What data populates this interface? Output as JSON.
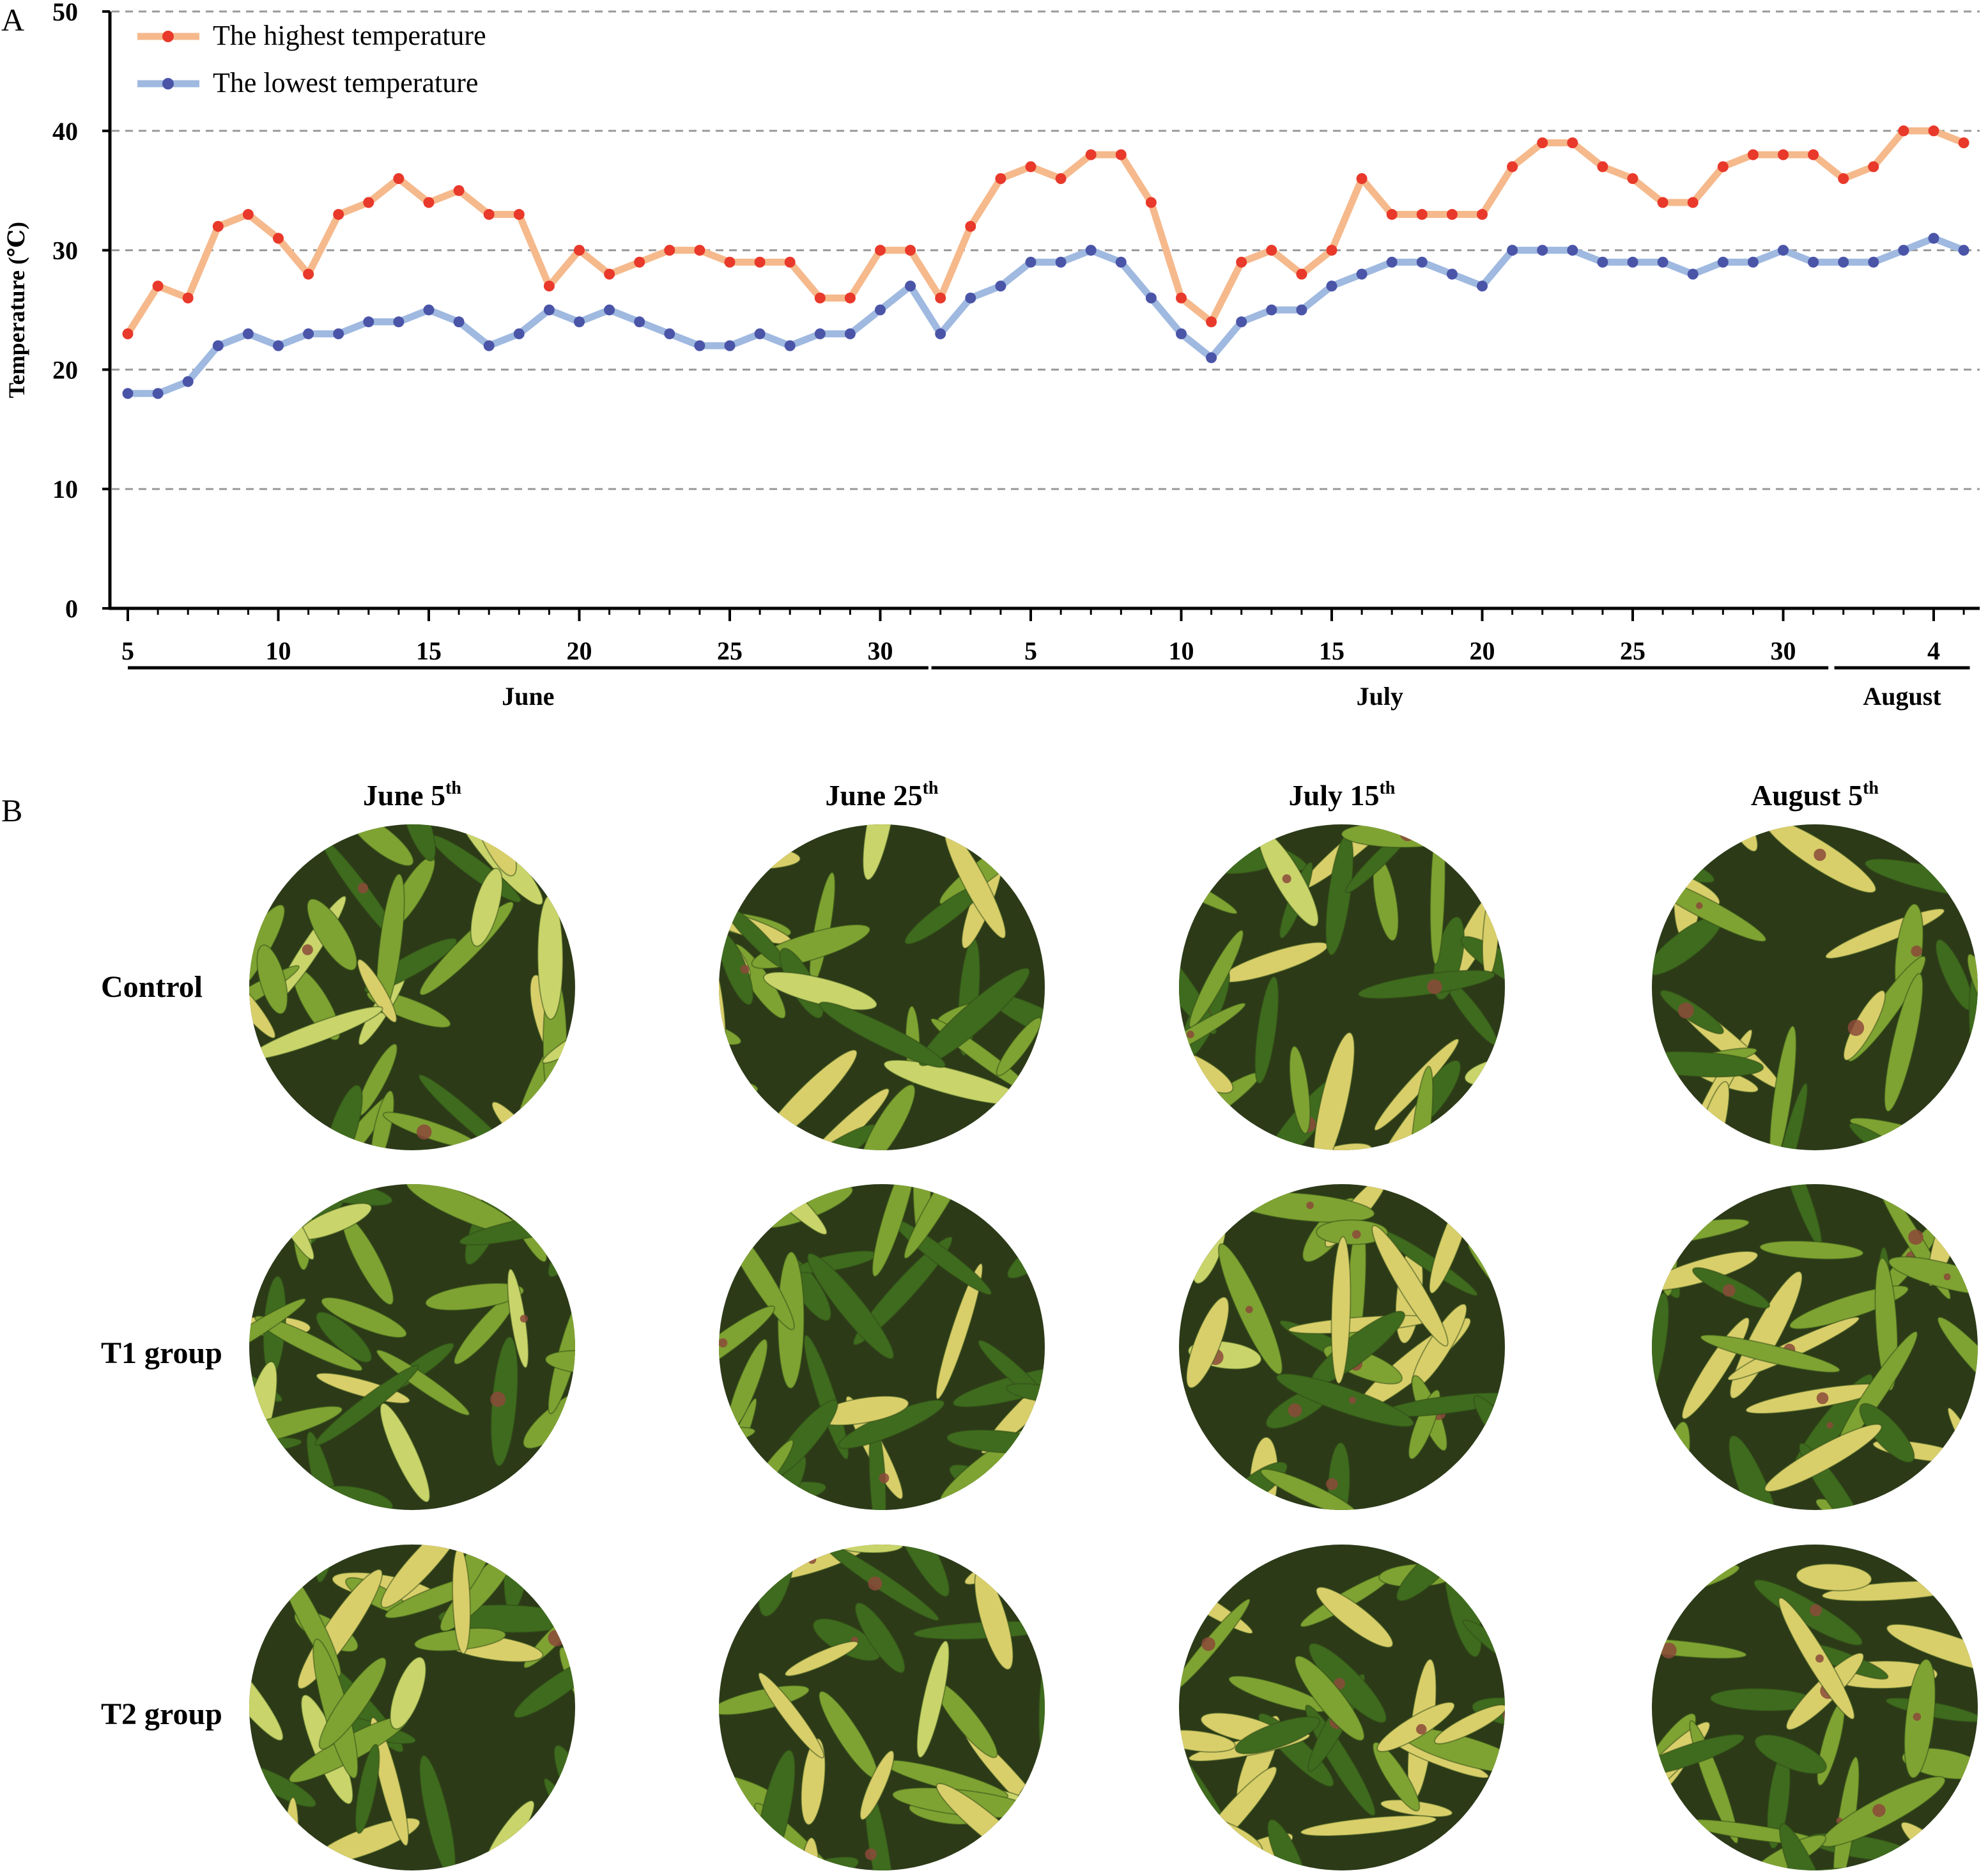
{
  "panels": {
    "a_letter": "A",
    "b_letter": "B"
  },
  "chart_data": {
    "type": "line",
    "title": "",
    "xlabel": "",
    "ylabel": "Temperature (℃)",
    "ylim": [
      0,
      50
    ],
    "yticks": [
      0,
      10,
      20,
      30,
      40,
      50
    ],
    "grid": "horizontal dashed",
    "legend_position": "top-left",
    "x_days": [
      5,
      6,
      7,
      8,
      9,
      10,
      11,
      12,
      13,
      14,
      15,
      16,
      17,
      18,
      19,
      20,
      21,
      22,
      23,
      24,
      25,
      26,
      27,
      28,
      29,
      30,
      1,
      2,
      3,
      4,
      5,
      6,
      7,
      8,
      9,
      10,
      11,
      12,
      13,
      14,
      15,
      16,
      17,
      18,
      19,
      20,
      21,
      22,
      23,
      24,
      25,
      26,
      27,
      28,
      29,
      30,
      31,
      1,
      2,
      3,
      4,
      5
    ],
    "x_tick_labels": [
      {
        "index": 0,
        "label": "5"
      },
      {
        "index": 5,
        "label": "10"
      },
      {
        "index": 10,
        "label": "15"
      },
      {
        "index": 15,
        "label": "20"
      },
      {
        "index": 20,
        "label": "25"
      },
      {
        "index": 25,
        "label": "30"
      },
      {
        "index": 30,
        "label": "5"
      },
      {
        "index": 35,
        "label": "10"
      },
      {
        "index": 40,
        "label": "15"
      },
      {
        "index": 45,
        "label": "20"
      },
      {
        "index": 50,
        "label": "25"
      },
      {
        "index": 55,
        "label": "30"
      },
      {
        "index": 60,
        "label": "4"
      }
    ],
    "months": [
      {
        "label": "June",
        "start_index": 0,
        "end_index": 26.6
      },
      {
        "label": "July",
        "start_index": 26.7,
        "end_index": 56.5
      },
      {
        "label": "August",
        "start_index": 56.7,
        "end_index": 61.2
      }
    ],
    "series": [
      {
        "name": "The highest temperature",
        "line_color": "#f5b98c",
        "marker_color": "#e8392b",
        "values": [
          23,
          27,
          26,
          32,
          33,
          31,
          28,
          33,
          34,
          36,
          34,
          35,
          33,
          33,
          27,
          30,
          28,
          29,
          30,
          30,
          29,
          29,
          29,
          26,
          26,
          30,
          30,
          26,
          32,
          36,
          37,
          36,
          38,
          38,
          34,
          26,
          24,
          29,
          30,
          28,
          30,
          36,
          33,
          33,
          33,
          33,
          37,
          39,
          39,
          37,
          36,
          34,
          34,
          37,
          38,
          38,
          38,
          36,
          37,
          40,
          40,
          39
        ]
      },
      {
        "name": "The lowest temperature",
        "line_color": "#9fb9e0",
        "marker_color": "#4a55a8",
        "values": [
          18,
          18,
          19,
          22,
          23,
          22,
          23,
          23,
          24,
          24,
          25,
          24,
          22,
          23,
          25,
          24,
          25,
          24,
          23,
          22,
          22,
          23,
          22,
          23,
          23,
          25,
          27,
          23,
          26,
          27,
          29,
          29,
          30,
          29,
          26,
          23,
          21,
          24,
          25,
          25,
          27,
          28,
          29,
          29,
          28,
          27,
          30,
          30,
          30,
          29,
          29,
          29,
          28,
          29,
          29,
          30,
          29,
          29,
          29,
          30,
          31,
          30
        ]
      }
    ]
  },
  "panel_b": {
    "columns": [
      {
        "main": "June 5",
        "sup": "th"
      },
      {
        "main": "June 25",
        "sup": "th"
      },
      {
        "main": "July 15",
        "sup": "th"
      },
      {
        "main": "August 5",
        "sup": "th"
      }
    ],
    "rows": [
      "Control",
      "T1 group",
      "T2 group"
    ],
    "photo_palette": {
      "leaf_dark": "#3f6b1e",
      "leaf_mid": "#7fa332",
      "leaf_light": "#c9d46a",
      "leaf_yellow": "#d9cf6a",
      "shadow": "#2c3a18",
      "lesion": "#8b4a3a"
    }
  }
}
